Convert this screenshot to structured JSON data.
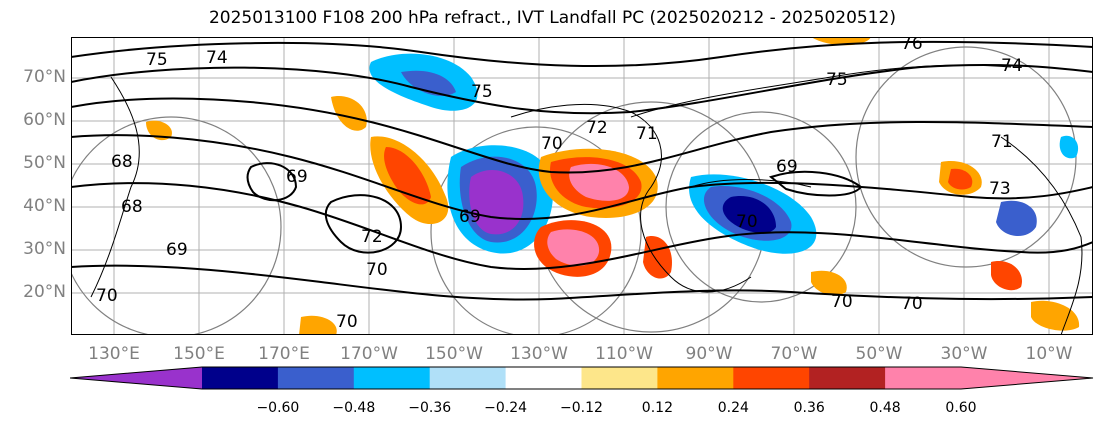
{
  "title": "2025013100 F108 200 hPa refract., IVT Landfall PC (2025020212 - 2025020512)",
  "lat_labels": [
    "70°N",
    "60°N",
    "50°N",
    "40°N",
    "30°N",
    "20°N"
  ],
  "lon_labels": [
    "130°E",
    "150°E",
    "170°E",
    "170°W",
    "150°W",
    "130°W",
    "110°W",
    "90°W",
    "70°W",
    "50°W",
    "30°W",
    "10°W"
  ],
  "colorbar": {
    "tick_labels": [
      "−0.60",
      "−0.48",
      "−0.36",
      "−0.24",
      "−0.12",
      "0.12",
      "0.24",
      "0.36",
      "0.48",
      "0.60"
    ],
    "colors": [
      "#9932cc",
      "#00008b",
      "#3a5fcd",
      "#00bfff",
      "#b0e0f8",
      "#ffffff",
      "#fde68a",
      "#ffa500",
      "#ff4500",
      "#b22222",
      "#ff82ab",
      "#ff82ab"
    ]
  },
  "contour_labels": [
    "75",
    "74",
    "74",
    "76",
    "75",
    "71",
    "72",
    "69",
    "68",
    "69",
    "69",
    "70",
    "70",
    "70",
    "70",
    "73",
    "69",
    "70",
    "70",
    "71",
    "75",
    "68",
    "72",
    "70"
  ]
}
